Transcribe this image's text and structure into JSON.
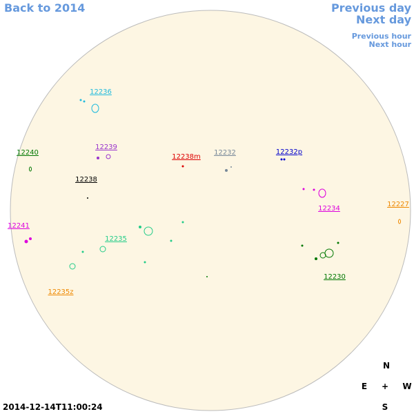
{
  "navigation": {
    "back": "Back to 2014",
    "previous_day": "Previous day",
    "next_day": "Next day",
    "previous_hour": "Previous hour",
    "next_hour": "Next hour"
  },
  "regions": [
    "12236",
    "12239",
    "12240",
    "12238m",
    "12232",
    "12232p",
    "12238",
    "12234",
    "12227",
    "12241",
    "12235",
    "12230",
    "12235z"
  ],
  "timestamp": "2014-12-14T11:00:24",
  "compass": {
    "north": "N",
    "east": "E",
    "center": "+",
    "west": "W",
    "south": "S"
  }
}
